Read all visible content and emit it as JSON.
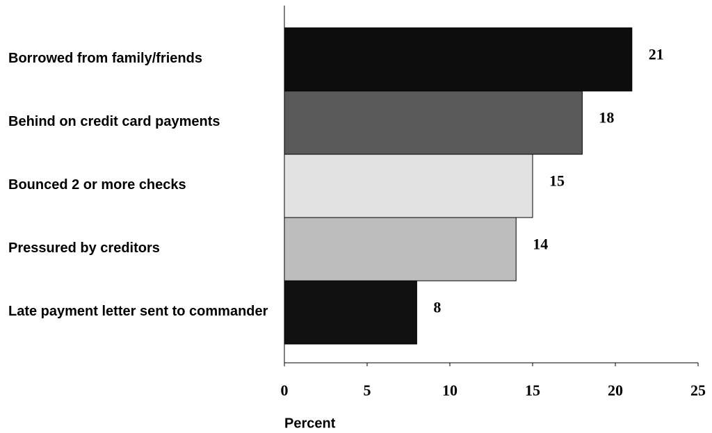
{
  "chart_data": {
    "type": "bar",
    "orientation": "horizontal",
    "categories": [
      "Borrowed from family/friends",
      "Behind on credit card payments",
      "Bounced 2 or more checks",
      "Pressured by creditors",
      "Late payment letter sent to commander"
    ],
    "values": [
      21,
      18,
      15,
      14,
      8
    ],
    "colors": [
      "#0d0d0d",
      "#5a5a5a",
      "#e2e2e2",
      "#bdbdbd",
      "#111111"
    ],
    "xlabel": "Percent",
    "xlim": [
      0,
      25
    ],
    "xticks": [
      0,
      5,
      10,
      15,
      20,
      25
    ]
  }
}
